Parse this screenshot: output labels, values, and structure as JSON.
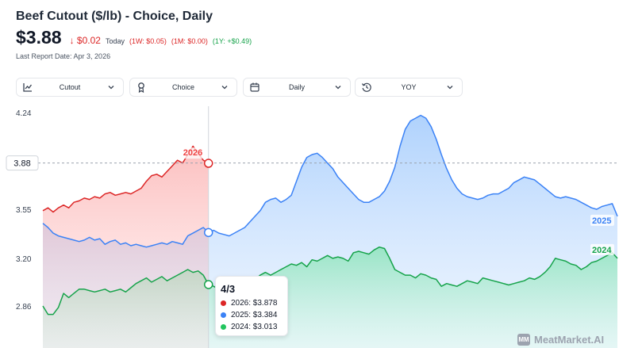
{
  "header": {
    "title": "Beef Cutout ($/lb) - Choice, Daily",
    "price": "$3.88",
    "change": "$0.02",
    "today": "Today",
    "one_week": "(1W: $0.05)",
    "one_month": "(1M: $0.00)",
    "one_year": "(1Y: +$0.49)",
    "report_date": "Last Report Date: Apr 3, 2026"
  },
  "toolbar": {
    "cutout_label": "Cutout",
    "grade_label": "Choice",
    "frequency_label": "Daily",
    "compare_label": "YOY",
    "icons": [
      "chart-line-icon",
      "ribbon-icon",
      "calendar-icon",
      "history-icon"
    ]
  },
  "tooltip": {
    "date": "4/3",
    "rows": [
      "2026: $3.878",
      "2025: $3.384",
      "2024: $3.013"
    ]
  },
  "brand": {
    "logo": "MM",
    "name": "MeatMarket.AI"
  },
  "colors": {
    "s2026": "#dc2626",
    "s2025": "#3b82f6",
    "s2024": "#16a34a",
    "price_down": "#dc2626",
    "gain": "#16a34a"
  },
  "chart_data": {
    "type": "area",
    "title": "Beef Cutout ($/lb) - Choice, Daily",
    "ylim": [
      2.72,
      4.26
    ],
    "yticks": [
      "4.24",
      "3.55",
      "3.20",
      "2.86"
    ],
    "ytick_values": [
      4.24,
      3.55,
      3.2,
      2.86
    ],
    "current_value_label": "3.88",
    "current_value": 3.88,
    "hover_index": 32,
    "n_points": 112,
    "series": [
      {
        "name": "2026",
        "color": "#dc2626",
        "values": [
          3.54,
          3.56,
          3.53,
          3.56,
          3.58,
          3.56,
          3.6,
          3.61,
          3.63,
          3.62,
          3.64,
          3.63,
          3.66,
          3.67,
          3.65,
          3.66,
          3.67,
          3.66,
          3.68,
          3.7,
          3.75,
          3.79,
          3.8,
          3.78,
          3.82,
          3.86,
          3.9,
          3.88,
          3.94,
          4.0,
          3.95,
          3.9,
          3.878
        ]
      },
      {
        "name": "2025",
        "color": "#3b82f6",
        "values": [
          3.45,
          3.42,
          3.38,
          3.36,
          3.35,
          3.34,
          3.33,
          3.32,
          3.33,
          3.35,
          3.33,
          3.34,
          3.3,
          3.32,
          3.33,
          3.3,
          3.31,
          3.29,
          3.3,
          3.29,
          3.28,
          3.29,
          3.3,
          3.31,
          3.3,
          3.32,
          3.31,
          3.3,
          3.36,
          3.38,
          3.4,
          3.42,
          3.384,
          3.4,
          3.38,
          3.37,
          3.36,
          3.38,
          3.4,
          3.42,
          3.46,
          3.5,
          3.54,
          3.6,
          3.62,
          3.63,
          3.6,
          3.62,
          3.65,
          3.75,
          3.85,
          3.92,
          3.94,
          3.95,
          3.92,
          3.88,
          3.84,
          3.78,
          3.74,
          3.7,
          3.66,
          3.62,
          3.6,
          3.6,
          3.62,
          3.64,
          3.68,
          3.75,
          3.85,
          4.0,
          4.12,
          4.18,
          4.2,
          4.22,
          4.2,
          4.14,
          4.05,
          3.94,
          3.84,
          3.76,
          3.7,
          3.66,
          3.64,
          3.63,
          3.62,
          3.63,
          3.65,
          3.66,
          3.66,
          3.68,
          3.7,
          3.74,
          3.76,
          3.78,
          3.77,
          3.76,
          3.73,
          3.7,
          3.67,
          3.64,
          3.63,
          3.64,
          3.63,
          3.62,
          3.6,
          3.58,
          3.56,
          3.55,
          3.57,
          3.58,
          3.59,
          3.5
        ]
      },
      {
        "name": "2024",
        "color": "#16a34a",
        "values": [
          2.86,
          2.8,
          2.8,
          2.85,
          2.95,
          2.92,
          2.95,
          2.98,
          2.98,
          2.97,
          2.96,
          2.97,
          2.98,
          2.96,
          2.97,
          2.98,
          2.96,
          2.99,
          3.02,
          3.04,
          3.06,
          3.03,
          3.05,
          3.07,
          3.04,
          3.06,
          3.08,
          3.1,
          3.12,
          3.1,
          3.11,
          3.08,
          3.013,
          3.0,
          2.98,
          2.98,
          2.99,
          3.02,
          3.0,
          3.01,
          3.02,
          3.05,
          3.08,
          3.1,
          3.08,
          3.1,
          3.12,
          3.14,
          3.16,
          3.15,
          3.17,
          3.14,
          3.19,
          3.18,
          3.2,
          3.22,
          3.2,
          3.21,
          3.2,
          3.18,
          3.24,
          3.25,
          3.24,
          3.23,
          3.26,
          3.28,
          3.27,
          3.2,
          3.12,
          3.1,
          3.08,
          3.08,
          3.06,
          3.09,
          3.08,
          3.06,
          3.05,
          3.0,
          3.02,
          3.01,
          3.0,
          3.02,
          3.04,
          3.03,
          3.02,
          3.06,
          3.05,
          3.04,
          3.03,
          3.02,
          3.01,
          3.02,
          3.03,
          3.04,
          3.06,
          3.05,
          3.07,
          3.1,
          3.14,
          3.2,
          3.19,
          3.18,
          3.16,
          3.15,
          3.12,
          3.14,
          3.17,
          3.18,
          3.2,
          3.22,
          3.24,
          3.2
        ]
      }
    ]
  }
}
